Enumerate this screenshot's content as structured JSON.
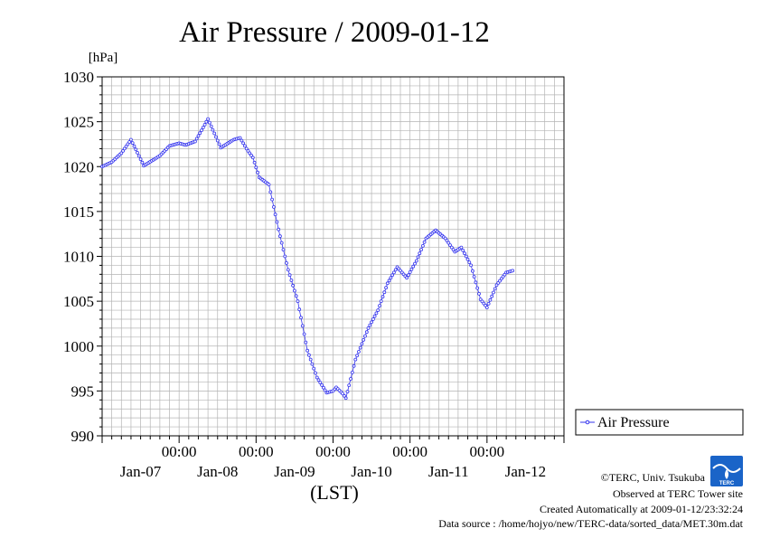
{
  "title": "Air Pressure / 2009-01-12",
  "y_unit": "[hPa]",
  "x_axis_label": "(LST)",
  "colors": {
    "series": "#3333ee",
    "grid": "#b4b4b4",
    "axis": "#000000",
    "logo": "#1a64c8"
  },
  "logo": {
    "icon": "terc-wave-logo",
    "text": "TERC"
  },
  "credits": {
    "copyright": "©TERC, Univ. Tsukuba",
    "observed": "Observed at TERC Tower site",
    "created": "Created Automatically at 2009-01-12/23:32:24",
    "source": "Data source : /home/hojyo/new/TERC-data/sorted_data/MET.30m.dat"
  },
  "chart_data": {
    "type": "line",
    "title": "Air Pressure / 2009-01-12",
    "ylabel": "[hPa]",
    "xlabel": "(LST)",
    "ylim": [
      990,
      1030
    ],
    "yticks": [
      "990",
      "995",
      "1000",
      "1005",
      "1010",
      "1015",
      "1020",
      "1025",
      "1030"
    ],
    "xlim_hours": [
      0,
      144
    ],
    "x_tick_hours": [
      0,
      24,
      48,
      72,
      96,
      120,
      144
    ],
    "x_ticks_time": [
      "00:00",
      "00:00",
      "00:00",
      "00:00",
      "00:00"
    ],
    "x_ticks_date": [
      "Jan-07",
      "Jan-08",
      "Jan-09",
      "Jan-10",
      "Jan-11",
      "Jan-12"
    ],
    "grid": true,
    "legend": {
      "position": "right",
      "entries": [
        "Air Pressure"
      ]
    },
    "series": [
      {
        "name": "Air Pressure",
        "sample_interval_minutes": 30,
        "anchors": [
          [
            "Jan-07 00:00",
            1020.0
          ],
          [
            "Jan-07 03:00",
            1020.5
          ],
          [
            "Jan-07 06:00",
            1021.5
          ],
          [
            "Jan-07 09:00",
            1023.0
          ],
          [
            "Jan-07 13:00",
            1020.1
          ],
          [
            "Jan-07 18:00",
            1021.2
          ],
          [
            "Jan-07 21:00",
            1022.3
          ],
          [
            "Jan-08 00:00",
            1022.6
          ],
          [
            "Jan-08 02:00",
            1022.4
          ],
          [
            "Jan-08 05:00",
            1022.8
          ],
          [
            "Jan-08 09:00",
            1025.3
          ],
          [
            "Jan-08 13:00",
            1022.1
          ],
          [
            "Jan-08 17:00",
            1023.0
          ],
          [
            "Jan-08 19:00",
            1023.2
          ],
          [
            "Jan-08 21:00",
            1022.0
          ],
          [
            "Jan-08 23:00",
            1021.0
          ],
          [
            "Jan-09 01:00",
            1018.8
          ],
          [
            "Jan-09 04:00",
            1018.0
          ],
          [
            "Jan-09 07:00",
            1013.0
          ],
          [
            "Jan-09 10:00",
            1008.5
          ],
          [
            "Jan-09 13:00",
            1005.0
          ],
          [
            "Jan-09 16:00",
            999.5
          ],
          [
            "Jan-09 19:00",
            996.5
          ],
          [
            "Jan-09 22:00",
            994.8
          ],
          [
            "Jan-10 00:00",
            995.0
          ],
          [
            "Jan-10 01:00",
            995.4
          ],
          [
            "Jan-10 03:00",
            994.7
          ],
          [
            "Jan-10 04:00",
            994.2
          ],
          [
            "Jan-10 07:00",
            998.5
          ],
          [
            "Jan-10 11:00",
            1002.0
          ],
          [
            "Jan-10 14:00",
            1004.0
          ],
          [
            "Jan-10 17:00",
            1007.0
          ],
          [
            "Jan-10 20:00",
            1008.8
          ],
          [
            "Jan-10 23:00",
            1007.6
          ],
          [
            "Jan-11 02:00",
            1009.5
          ],
          [
            "Jan-11 05:00",
            1012.0
          ],
          [
            "Jan-11 08:00",
            1012.9
          ],
          [
            "Jan-11 11:00",
            1012.0
          ],
          [
            "Jan-11 14:00",
            1010.5
          ],
          [
            "Jan-11 16:00",
            1011.0
          ],
          [
            "Jan-11 19:00",
            1009.0
          ],
          [
            "Jan-11 22:00",
            1005.2
          ],
          [
            "Jan-12 00:00",
            1004.3
          ],
          [
            "Jan-12 03:00",
            1006.8
          ],
          [
            "Jan-12 06:00",
            1008.2
          ],
          [
            "Jan-12 08:00",
            1008.4
          ]
        ]
      }
    ]
  }
}
